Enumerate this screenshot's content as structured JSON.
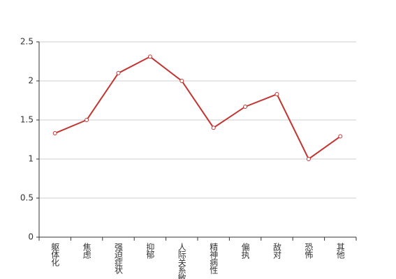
{
  "chart_data": {
    "type": "line",
    "categories": [
      "躯体化",
      "焦虑",
      "强迫症状",
      "抑郁",
      "人际关系敏感",
      "精神病性",
      "偏执",
      "敌对",
      "恐怖",
      "其他"
    ],
    "series": [
      {
        "color": "#c23531",
        "values": [
          1.33,
          1.5,
          2.1,
          2.31,
          2.0,
          1.4,
          1.67,
          1.83,
          1.0,
          1.29
        ]
      }
    ],
    "ylim": [
      0,
      2.5
    ],
    "yticks": [
      0,
      0.5,
      1,
      1.5,
      2,
      2.5
    ],
    "grid": true
  }
}
